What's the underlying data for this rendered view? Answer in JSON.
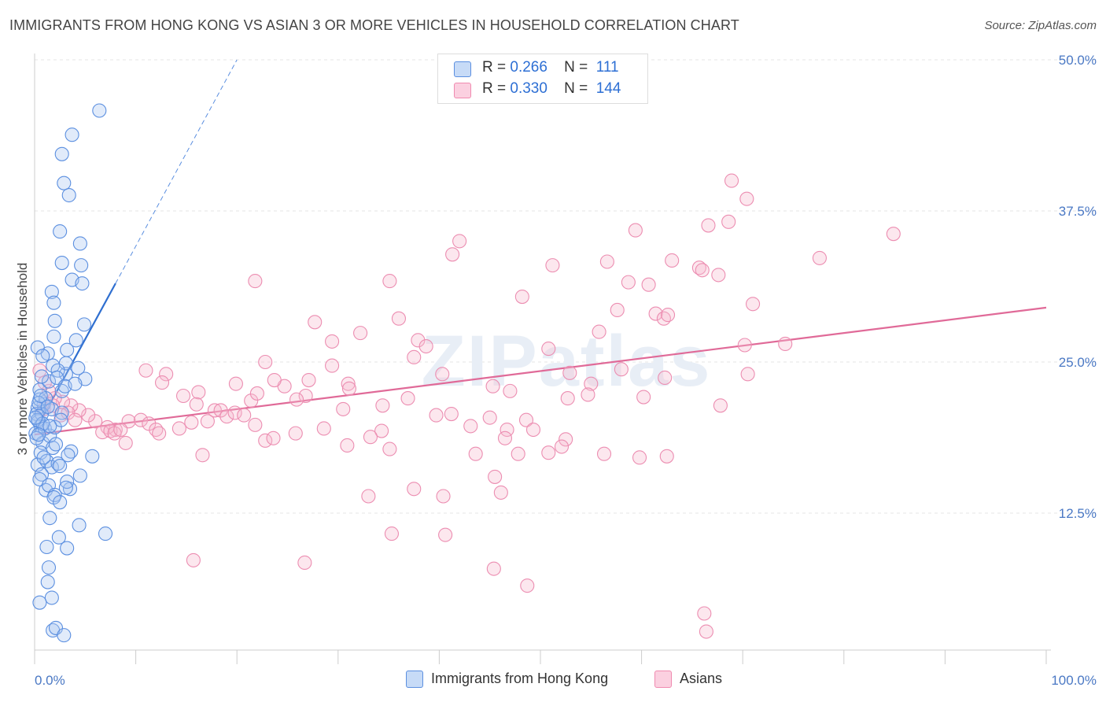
{
  "title": "IMMIGRANTS FROM HONG KONG VS ASIAN 3 OR MORE VEHICLES IN HOUSEHOLD CORRELATION CHART",
  "source": "Source: ZipAtlas.com",
  "watermark": "ZIPatlas",
  "legend": {
    "rows": [
      {
        "r_label": "R =",
        "r_value": "0.266",
        "n_label": "N =",
        "n_value": "111",
        "color": "#5b8fe0"
      },
      {
        "r_label": "R =",
        "r_value": "0.330",
        "n_label": "N =",
        "n_value": "144",
        "color": "#f08ab0"
      }
    ]
  },
  "bottom_legend": [
    {
      "label": "Immigrants from Hong Kong",
      "color": "#5b8fe0"
    },
    {
      "label": "Asians",
      "color": "#f08ab0"
    }
  ],
  "chart_data": {
    "type": "scatter",
    "title": "IMMIGRANTS FROM HONG KONG VS ASIAN 3 OR MORE VEHICLES IN HOUSEHOLD CORRELATION CHART",
    "xlabel": "",
    "ylabel": "3 or more Vehicles in Household",
    "xlim": [
      0,
      100
    ],
    "ylim": [
      0,
      50
    ],
    "x_tick_labels": [
      "0.0%",
      "100.0%"
    ],
    "y_ticks": [
      12.5,
      25,
      37.5,
      50
    ],
    "y_tick_labels": [
      "12.5%",
      "25.0%",
      "37.5%",
      "50.0%"
    ],
    "grid": true,
    "legend_position": "top-center",
    "series": [
      {
        "name": "Immigrants from Hong Kong",
        "color": "#5b8fe0",
        "trend": {
          "x0": 0.0,
          "y0": 19.2,
          "x1": 8.0,
          "y1": 31.5,
          "dashed_to_x": 20.0,
          "dashed_to_y": 50.0
        },
        "points": [
          [
            6.4,
            45.8
          ],
          [
            3.7,
            43.8
          ],
          [
            2.7,
            42.2
          ],
          [
            2.9,
            39.8
          ],
          [
            3.4,
            38.8
          ],
          [
            2.5,
            35.8
          ],
          [
            4.5,
            34.8
          ],
          [
            2.7,
            33.2
          ],
          [
            4.6,
            33.0
          ],
          [
            3.7,
            31.8
          ],
          [
            4.7,
            31.5
          ],
          [
            1.7,
            30.8
          ],
          [
            1.9,
            29.9
          ],
          [
            2.0,
            28.4
          ],
          [
            4.9,
            28.1
          ],
          [
            1.9,
            27.1
          ],
          [
            4.1,
            26.8
          ],
          [
            1.3,
            25.7
          ],
          [
            3.1,
            24.0
          ],
          [
            5.0,
            23.6
          ],
          [
            2.7,
            22.6
          ],
          [
            3.1,
            24.9
          ],
          [
            0.3,
            26.2
          ],
          [
            0.8,
            25.5
          ],
          [
            1.8,
            24.7
          ],
          [
            3.2,
            26.0
          ],
          [
            4.3,
            24.5
          ],
          [
            2.3,
            24.3
          ],
          [
            0.5,
            22.7
          ],
          [
            1.4,
            23.4
          ],
          [
            2.2,
            23.7
          ],
          [
            3.0,
            23.0
          ],
          [
            4.0,
            23.2
          ],
          [
            0.9,
            21.5
          ],
          [
            1.7,
            21.1
          ],
          [
            2.7,
            20.8
          ],
          [
            0.3,
            21.2
          ],
          [
            0.2,
            20.7
          ],
          [
            0.4,
            20.1
          ],
          [
            0.6,
            19.7
          ],
          [
            0.1,
            19.1
          ],
          [
            0.8,
            18.3
          ],
          [
            0.6,
            17.5
          ],
          [
            0.3,
            16.5
          ],
          [
            1.2,
            16.8
          ],
          [
            1.7,
            16.3
          ],
          [
            0.7,
            15.7
          ],
          [
            0.5,
            15.3
          ],
          [
            1.1,
            14.4
          ],
          [
            2.3,
            16.6
          ],
          [
            1.8,
            17.9
          ],
          [
            1.5,
            18.9
          ],
          [
            1.4,
            14.8
          ],
          [
            2.0,
            14.0
          ],
          [
            2.5,
            16.4
          ],
          [
            3.5,
            14.5
          ],
          [
            3.2,
            15.1
          ],
          [
            5.7,
            17.2
          ],
          [
            4.5,
            15.6
          ],
          [
            1.9,
            13.8
          ],
          [
            2.5,
            13.4
          ],
          [
            3.1,
            14.6
          ],
          [
            1.5,
            12.1
          ],
          [
            2.4,
            10.5
          ],
          [
            1.2,
            9.7
          ],
          [
            3.2,
            9.6
          ],
          [
            4.4,
            11.5
          ],
          [
            1.4,
            8.0
          ],
          [
            7.0,
            10.8
          ],
          [
            1.3,
            6.8
          ],
          [
            1.7,
            5.5
          ],
          [
            0.5,
            5.1
          ],
          [
            1.8,
            2.8
          ],
          [
            2.1,
            3.0
          ],
          [
            2.9,
            2.4
          ],
          [
            0.5,
            21.9
          ],
          [
            1.1,
            22.0
          ],
          [
            0.7,
            20.7
          ],
          [
            0.3,
            20.2
          ],
          [
            1.0,
            19.5
          ],
          [
            0.2,
            18.7
          ],
          [
            0.9,
            17.1
          ],
          [
            2.0,
            19.6
          ],
          [
            2.6,
            20.2
          ],
          [
            3.6,
            17.6
          ],
          [
            0.4,
            21.6
          ],
          [
            0.6,
            22.2
          ],
          [
            1.3,
            21.3
          ],
          [
            0.8,
            19.9
          ],
          [
            0.1,
            20.4
          ],
          [
            1.5,
            19.7
          ],
          [
            2.1,
            18.2
          ],
          [
            0.4,
            19.0
          ],
          [
            3.3,
            17.3
          ],
          [
            0.7,
            23.8
          ]
        ]
      },
      {
        "name": "Asians",
        "color": "#f08ab0",
        "trend": {
          "x0": 0.0,
          "y0": 19.0,
          "x1": 100.0,
          "y1": 29.5
        },
        "points": [
          [
            68.9,
            40.0
          ],
          [
            70.4,
            38.5
          ],
          [
            59.4,
            35.9
          ],
          [
            66.6,
            36.3
          ],
          [
            68.6,
            36.6
          ],
          [
            84.9,
            35.6
          ],
          [
            42.0,
            35.0
          ],
          [
            41.3,
            33.9
          ],
          [
            56.6,
            33.3
          ],
          [
            51.2,
            33.0
          ],
          [
            63.0,
            33.4
          ],
          [
            77.6,
            33.6
          ],
          [
            60.7,
            31.4
          ],
          [
            65.7,
            32.8
          ],
          [
            67.6,
            32.2
          ],
          [
            66.0,
            32.6
          ],
          [
            21.8,
            31.7
          ],
          [
            35.1,
            31.7
          ],
          [
            58.7,
            31.6
          ],
          [
            48.2,
            30.4
          ],
          [
            71.0,
            29.8
          ],
          [
            57.6,
            29.3
          ],
          [
            55.8,
            27.5
          ],
          [
            61.4,
            29.0
          ],
          [
            62.2,
            28.6
          ],
          [
            62.6,
            28.9
          ],
          [
            27.7,
            28.3
          ],
          [
            32.2,
            27.4
          ],
          [
            36.0,
            28.6
          ],
          [
            29.4,
            26.7
          ],
          [
            37.9,
            26.8
          ],
          [
            38.7,
            26.3
          ],
          [
            50.8,
            26.1
          ],
          [
            70.2,
            26.4
          ],
          [
            74.2,
            26.5
          ],
          [
            22.8,
            25.0
          ],
          [
            37.5,
            25.4
          ],
          [
            40.3,
            24.0
          ],
          [
            11.0,
            24.3
          ],
          [
            13.0,
            24.0
          ],
          [
            29.4,
            24.7
          ],
          [
            27.1,
            23.5
          ],
          [
            24.7,
            23.0
          ],
          [
            31.0,
            23.2
          ],
          [
            52.9,
            24.1
          ],
          [
            62.3,
            23.7
          ],
          [
            70.5,
            24.0
          ],
          [
            16.2,
            22.5
          ],
          [
            12.6,
            23.3
          ],
          [
            19.9,
            23.2
          ],
          [
            23.7,
            23.5
          ],
          [
            31.1,
            22.8
          ],
          [
            47.0,
            22.6
          ],
          [
            55.0,
            23.2
          ],
          [
            58.0,
            24.4
          ],
          [
            45.3,
            23.0
          ],
          [
            36.9,
            22.0
          ],
          [
            26.8,
            22.2
          ],
          [
            21.4,
            21.8
          ],
          [
            22.0,
            22.4
          ],
          [
            14.7,
            22.2
          ],
          [
            17.8,
            21.0
          ],
          [
            18.4,
            21.0
          ],
          [
            25.9,
            21.9
          ],
          [
            34.4,
            21.4
          ],
          [
            30.5,
            21.1
          ],
          [
            41.2,
            20.7
          ],
          [
            45.0,
            20.4
          ],
          [
            48.6,
            20.2
          ],
          [
            52.7,
            22.0
          ],
          [
            54.7,
            22.3
          ],
          [
            60.2,
            22.1
          ],
          [
            67.8,
            21.4
          ],
          [
            16.0,
            21.5
          ],
          [
            19.0,
            20.5
          ],
          [
            19.8,
            20.8
          ],
          [
            20.7,
            20.6
          ],
          [
            15.5,
            20.0
          ],
          [
            17.1,
            20.1
          ],
          [
            9.3,
            20.1
          ],
          [
            10.5,
            20.2
          ],
          [
            11.3,
            19.9
          ],
          [
            12.0,
            19.4
          ],
          [
            8.0,
            19.4
          ],
          [
            7.2,
            19.6
          ],
          [
            6.0,
            20.1
          ],
          [
            5.3,
            20.6
          ],
          [
            4.4,
            21.0
          ],
          [
            3.6,
            21.4
          ],
          [
            2.8,
            21.7
          ],
          [
            2.0,
            22.0
          ],
          [
            1.4,
            22.6
          ],
          [
            1.0,
            23.3
          ],
          [
            0.5,
            24.3
          ],
          [
            0.9,
            21.1
          ],
          [
            1.8,
            21.4
          ],
          [
            2.6,
            20.6
          ],
          [
            3.3,
            20.8
          ],
          [
            4.0,
            20.2
          ],
          [
            6.7,
            19.2
          ],
          [
            7.5,
            19.3
          ],
          [
            7.9,
            19.1
          ],
          [
            8.5,
            19.4
          ],
          [
            12.3,
            19.1
          ],
          [
            14.3,
            19.5
          ],
          [
            21.8,
            19.8
          ],
          [
            28.6,
            19.5
          ],
          [
            34.3,
            19.3
          ],
          [
            39.7,
            20.6
          ],
          [
            43.1,
            19.7
          ],
          [
            46.7,
            19.4
          ],
          [
            49.3,
            19.4
          ],
          [
            52.5,
            18.6
          ],
          [
            9.0,
            18.3
          ],
          [
            22.8,
            18.5
          ],
          [
            25.8,
            19.1
          ],
          [
            33.2,
            18.8
          ],
          [
            35.1,
            17.8
          ],
          [
            43.6,
            17.4
          ],
          [
            46.5,
            18.7
          ],
          [
            50.8,
            17.5
          ],
          [
            56.3,
            17.4
          ],
          [
            59.8,
            17.1
          ],
          [
            16.6,
            17.3
          ],
          [
            23.6,
            18.7
          ],
          [
            30.9,
            18.1
          ],
          [
            47.8,
            17.4
          ],
          [
            52.1,
            18.0
          ],
          [
            62.5,
            17.2
          ],
          [
            45.5,
            15.5
          ],
          [
            37.5,
            14.5
          ],
          [
            46.1,
            14.2
          ],
          [
            40.4,
            13.9
          ],
          [
            33.0,
            13.9
          ],
          [
            35.3,
            10.8
          ],
          [
            40.6,
            10.7
          ],
          [
            15.7,
            8.6
          ],
          [
            26.7,
            8.4
          ],
          [
            45.4,
            7.9
          ],
          [
            48.7,
            6.5
          ],
          [
            66.2,
            4.2
          ],
          [
            66.4,
            2.7
          ]
        ]
      }
    ]
  }
}
